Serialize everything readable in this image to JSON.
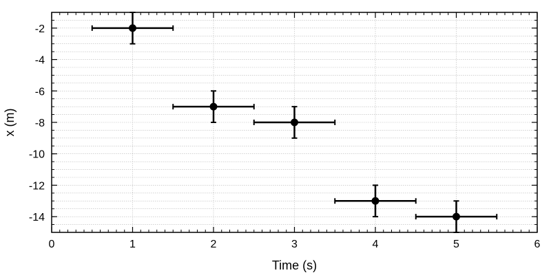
{
  "chart_data": {
    "type": "scatter",
    "xlabel": "Time (s)",
    "ylabel": "x (m)",
    "xlim": [
      0,
      6
    ],
    "ylim": [
      -15,
      -1
    ],
    "x_ticks": [
      0,
      1,
      2,
      3,
      4,
      5,
      6
    ],
    "x_tick_labels": [
      "0",
      "1",
      "2",
      "3",
      "4",
      "5",
      "6"
    ],
    "y_ticks": [
      -2,
      -4,
      -6,
      -8,
      -10,
      -12,
      -14
    ],
    "y_tick_labels": [
      "-2",
      "-4",
      "-6",
      "-8",
      "-10",
      "-12",
      "-14"
    ],
    "x_minor_step": 0.1,
    "y_minor_step": 0.5,
    "grid": true,
    "marker_color": "#000000",
    "series": [
      {
        "x": [
          1,
          2,
          3,
          4,
          5
        ],
        "y": [
          -2,
          -7,
          -8,
          -13,
          -14
        ],
        "x_error": [
          0.5,
          0.5,
          0.5,
          0.5,
          0.5
        ],
        "y_error": [
          1,
          1,
          1,
          1,
          1
        ]
      }
    ]
  }
}
